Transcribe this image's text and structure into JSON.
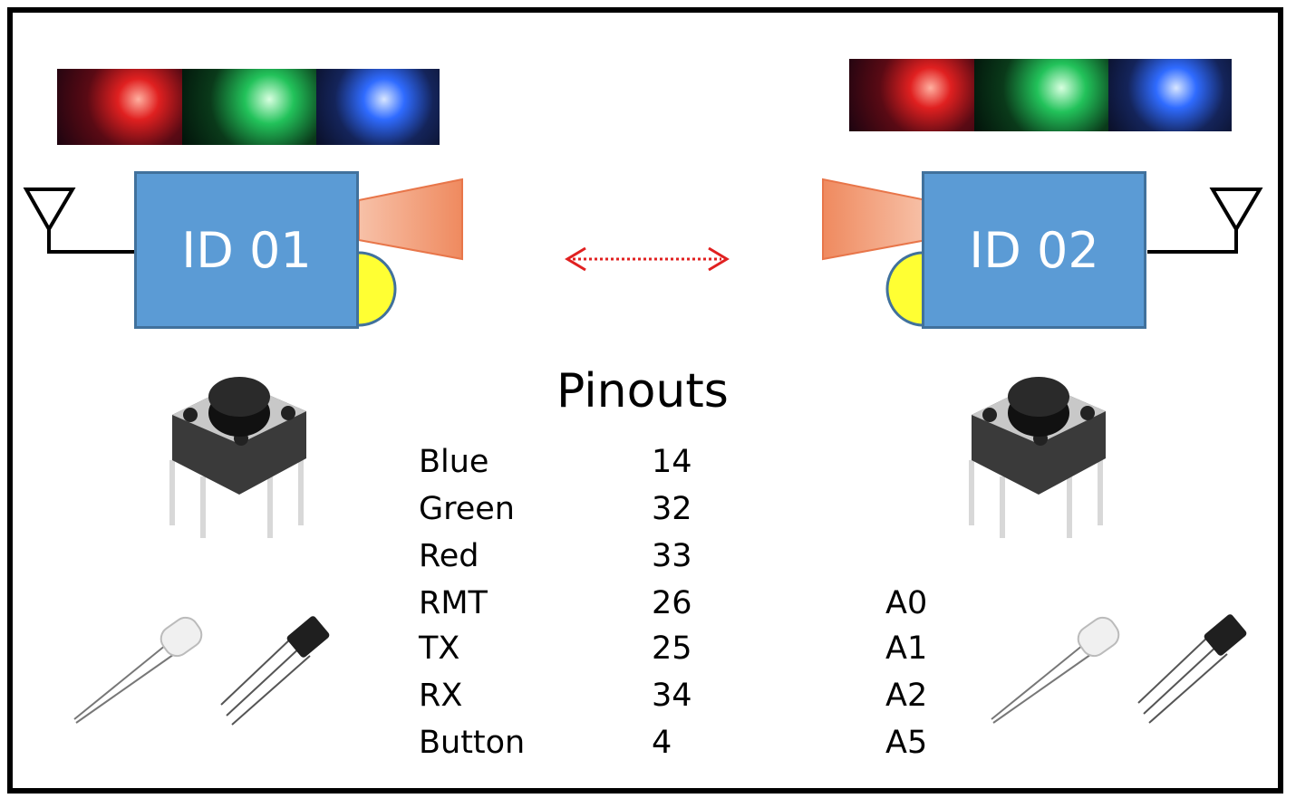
{
  "devices": [
    {
      "label": "ID 01"
    },
    {
      "label": "ID 02"
    }
  ],
  "led_colors": {
    "red": "#e02020",
    "green": "#22c25a",
    "blue": "#2f6bff"
  },
  "pinouts": {
    "title": "Pinouts",
    "rows": [
      {
        "name": "Blue",
        "pin": "14",
        "alt": ""
      },
      {
        "name": "Green",
        "pin": "32",
        "alt": ""
      },
      {
        "name": "Red",
        "pin": "33",
        "alt": ""
      },
      {
        "name": "RMT",
        "pin": "26",
        "alt": "A0"
      },
      {
        "name": "TX",
        "pin": "25",
        "alt": "A1"
      },
      {
        "name": "RX",
        "pin": "34",
        "alt": "A2"
      },
      {
        "name": "Button",
        "pin": "4",
        "alt": "A5"
      }
    ]
  },
  "icons": [
    "antenna-icon",
    "ir-emitter-icon",
    "status-led-icon",
    "link-arrow-icon",
    "push-button-icon",
    "ir-led-icon",
    "ir-receiver-icon"
  ]
}
